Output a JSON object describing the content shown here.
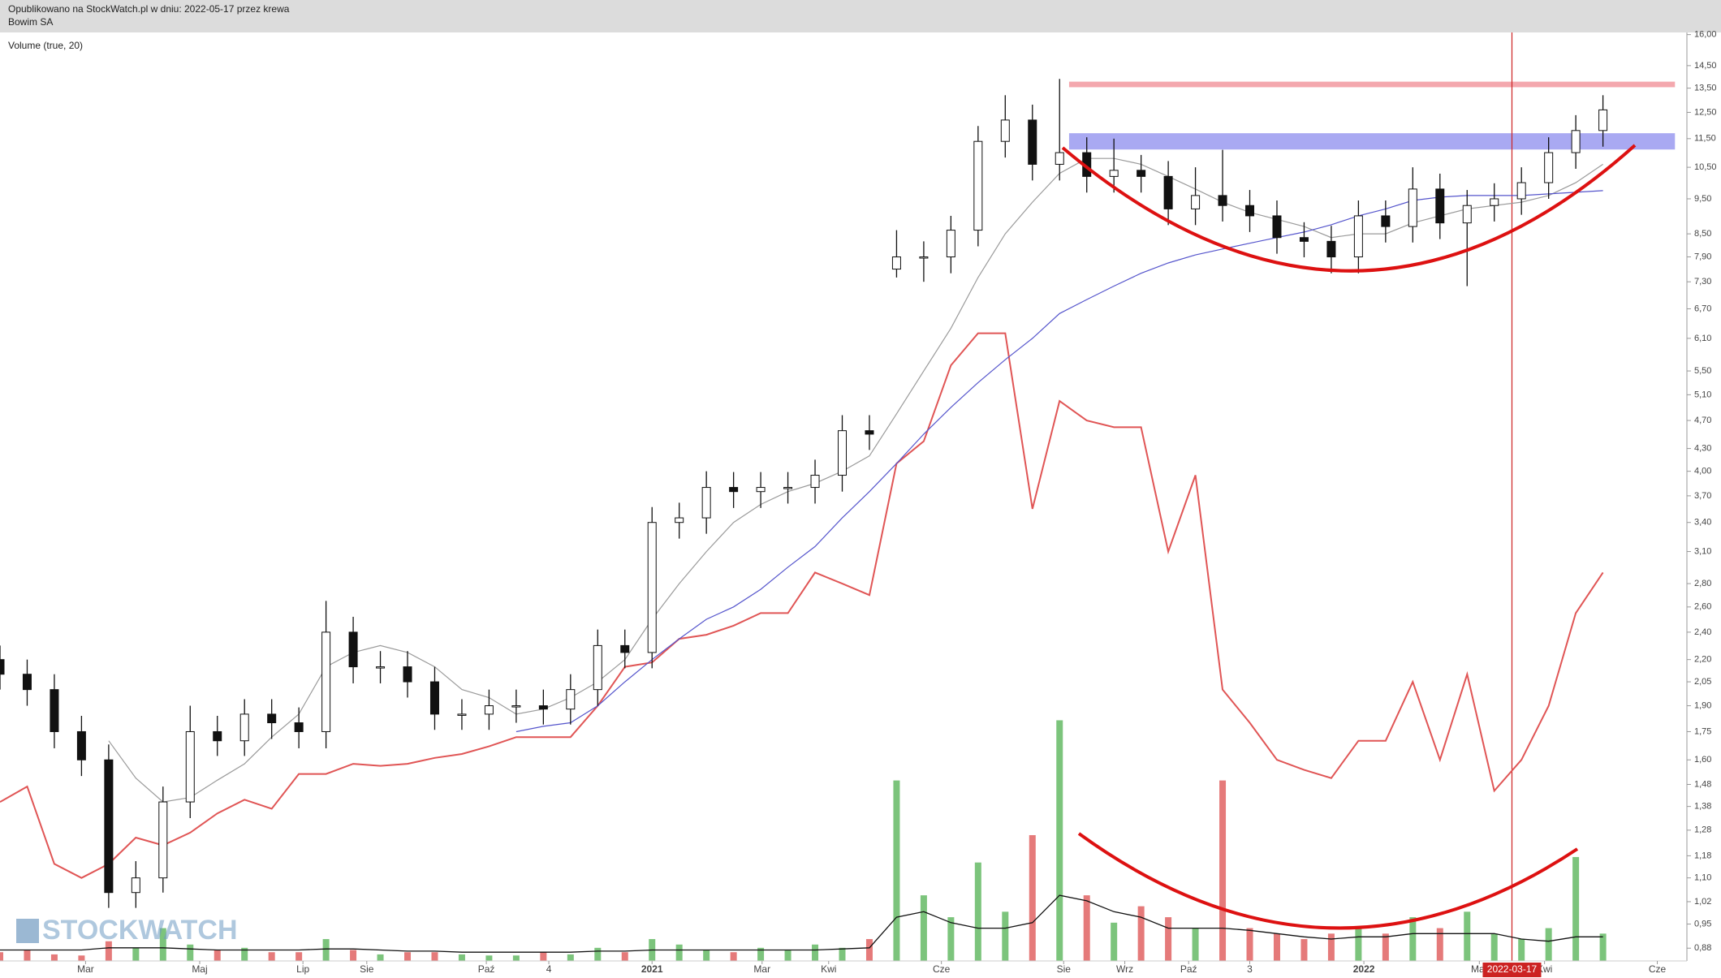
{
  "header": "Opublikowano na StockWatch.pl w dniu: 2022-05-17 przez krewa",
  "watermark": "STOCKWATCH",
  "chart_data": [
    {
      "type": "candlestick",
      "title": "Bowim SA",
      "x": [
        0,
        2,
        4,
        6,
        8,
        10,
        12,
        14,
        16,
        18,
        20,
        22,
        24,
        26,
        28,
        30,
        32,
        34,
        36,
        38,
        40,
        42,
        44,
        46,
        48,
        50,
        52,
        54,
        56,
        58,
        60,
        62,
        64,
        66,
        68,
        70,
        72,
        74,
        76,
        78,
        80,
        82,
        84,
        86,
        88,
        90,
        92,
        94,
        96,
        98,
        100,
        102,
        104,
        106,
        108,
        110,
        112,
        114,
        116,
        118
      ],
      "open": [
        2.2,
        2.1,
        2.0,
        1.75,
        1.6,
        1.05,
        1.1,
        1.4,
        1.75,
        1.7,
        1.85,
        1.8,
        1.75,
        2.4,
        2.15,
        2.15,
        2.05,
        1.85,
        1.85,
        1.9,
        1.9,
        1.88,
        2.0,
        2.3,
        2.25,
        3.4,
        3.45,
        3.8,
        3.75,
        3.8,
        3.8,
        3.95,
        4.55,
        7.6,
        7.9,
        7.9,
        8.6,
        11.4,
        12.2,
        10.6,
        11.0,
        10.2,
        10.4,
        10.2,
        9.2,
        9.6,
        9.3,
        9.0,
        8.4,
        8.3,
        7.9,
        9.0,
        8.7,
        9.8,
        8.8,
        9.3,
        9.5,
        10.0,
        11.0,
        11.8
      ],
      "high": [
        2.3,
        2.2,
        2.1,
        1.84,
        1.68,
        1.16,
        1.47,
        1.9,
        1.84,
        1.94,
        1.94,
        1.89,
        2.65,
        2.52,
        2.26,
        2.26,
        2.15,
        1.94,
        2.0,
        2.0,
        2.0,
        2.1,
        2.42,
        2.42,
        3.57,
        3.62,
        4.0,
        3.99,
        3.99,
        3.99,
        4.15,
        4.78,
        4.78,
        8.6,
        8.3,
        9.0,
        11.97,
        13.2,
        12.81,
        13.9,
        11.55,
        11.5,
        10.92,
        10.71,
        10.5,
        11.1,
        9.77,
        9.45,
        8.82,
        8.72,
        9.45,
        9.45,
        10.5,
        10.29,
        9.77,
        9.98,
        10.5,
        11.55,
        12.39,
        13.2
      ],
      "low": [
        2.0,
        1.9,
        1.66,
        1.52,
        1.0,
        1.0,
        1.05,
        1.33,
        1.62,
        1.62,
        1.71,
        1.66,
        1.66,
        2.04,
        2.04,
        1.95,
        1.76,
        1.76,
        1.76,
        1.8,
        1.79,
        1.79,
        1.9,
        2.14,
        2.14,
        3.23,
        3.28,
        3.56,
        3.56,
        3.61,
        3.61,
        3.75,
        4.28,
        7.4,
        7.3,
        7.5,
        8.17,
        10.83,
        10.07,
        10.07,
        9.69,
        9.69,
        9.69,
        8.74,
        8.74,
        8.84,
        8.55,
        7.98,
        7.89,
        7.5,
        7.5,
        8.27,
        8.27,
        8.36,
        7.2,
        8.84,
        9.03,
        9.5,
        10.45,
        11.21
      ],
      "close": [
        2.1,
        2.0,
        1.75,
        1.6,
        1.05,
        1.1,
        1.4,
        1.75,
        1.7,
        1.85,
        1.8,
        1.75,
        2.4,
        2.15,
        2.15,
        2.05,
        1.85,
        1.85,
        1.9,
        1.9,
        1.88,
        2.0,
        2.3,
        2.25,
        3.4,
        3.45,
        3.8,
        3.75,
        3.8,
        3.8,
        3.95,
        4.55,
        4.5,
        7.9,
        7.9,
        8.6,
        11.4,
        12.2,
        10.6,
        11.0,
        10.2,
        10.4,
        10.2,
        9.2,
        9.6,
        9.3,
        9.0,
        8.4,
        8.3,
        7.9,
        9.0,
        8.7,
        9.8,
        8.8,
        9.3,
        9.5,
        10.0,
        11.0,
        11.8,
        12.6
      ],
      "up_color": "#ffffff",
      "down_color": "#111111",
      "lines": [
        {
          "color": "#e05555",
          "values": [
            1.4,
            1.47,
            1.15,
            1.1,
            1.15,
            1.25,
            1.22,
            1.27,
            1.35,
            1.41,
            1.37,
            1.53,
            1.53,
            1.58,
            1.57,
            1.58,
            1.61,
            1.63,
            1.67,
            1.72,
            1.72,
            1.72,
            1.9,
            2.15,
            2.18,
            2.35,
            2.38,
            2.45,
            2.55,
            2.55,
            2.9,
            2.8,
            2.7,
            4.1,
            4.4,
            5.6,
            6.2,
            6.2,
            3.55,
            5.0,
            4.7,
            4.6,
            4.6,
            3.1,
            3.95,
            2.0,
            1.8,
            1.6,
            1.55,
            1.51,
            1.7,
            1.7,
            2.05,
            1.6,
            2.1,
            1.45,
            1.6,
            1.9,
            2.55,
            2.9
          ]
        },
        {
          "color": "#9a9a9a",
          "values": [
            null,
            null,
            null,
            null,
            1.7,
            1.51,
            1.4,
            1.42,
            1.5,
            1.58,
            1.72,
            1.85,
            2.15,
            2.25,
            2.3,
            2.25,
            2.15,
            2.0,
            1.95,
            1.85,
            1.88,
            1.95,
            2.05,
            2.2,
            2.5,
            2.8,
            3.1,
            3.4,
            3.6,
            3.75,
            3.85,
            4.0,
            4.2,
            4.8,
            5.5,
            6.3,
            7.4,
            8.5,
            9.4,
            10.3,
            10.8,
            10.8,
            10.6,
            10.2,
            9.8,
            9.4,
            9.1,
            8.9,
            8.7,
            8.4,
            8.5,
            8.5,
            8.8,
            9.0,
            9.2,
            9.3,
            9.4,
            9.6,
            10.0,
            10.6
          ]
        },
        {
          "color": "#5555cc",
          "values": [
            null,
            null,
            null,
            null,
            null,
            null,
            null,
            null,
            null,
            null,
            null,
            null,
            null,
            null,
            null,
            null,
            null,
            null,
            null,
            1.75,
            1.78,
            1.8,
            1.9,
            2.05,
            2.2,
            2.35,
            2.5,
            2.6,
            2.75,
            2.95,
            3.15,
            3.45,
            3.75,
            4.1,
            4.5,
            4.9,
            5.3,
            5.7,
            6.1,
            6.6,
            6.9,
            7.2,
            7.5,
            7.75,
            7.95,
            8.1,
            8.25,
            8.4,
            8.55,
            8.75,
            9.0,
            9.2,
            9.45,
            9.55,
            9.6,
            9.6,
            9.6,
            9.65,
            9.7,
            9.75
          ]
        }
      ],
      "bands": [
        {
          "from": 13.54,
          "to": 13.78,
          "x_from": 78.7,
          "x_to": 123.3,
          "color": "#f4a8ae"
        },
        {
          "from": 11.11,
          "to": 11.7,
          "x_from": 78.7,
          "x_to": 123.3,
          "color": "#a9a9f2"
        }
      ],
      "marker": {
        "x": 111.3,
        "label": "2022-03-17",
        "color": "#cc2222"
      },
      "log_scale": true,
      "xlim": [
        0,
        124
      ],
      "xticks": [
        {
          "value": 6.3,
          "label": "Mar"
        },
        {
          "value": 14.7,
          "label": "Maj"
        },
        {
          "value": 22.3,
          "label": "Lip"
        },
        {
          "value": 27.0,
          "label": "Sie"
        },
        {
          "value": 35.8,
          "label": "Paź"
        },
        {
          "value": 40.4,
          "label": "4"
        },
        {
          "value": 48.0,
          "label": "2021",
          "bold": true
        },
        {
          "value": 56.1,
          "label": "Mar"
        },
        {
          "value": 61.0,
          "label": "Kwi"
        },
        {
          "value": 69.3,
          "label": "Cze"
        },
        {
          "value": 78.3,
          "label": "Sie"
        },
        {
          "value": 82.8,
          "label": "Wrz"
        },
        {
          "value": 87.5,
          "label": "Paź"
        },
        {
          "value": 92.0,
          "label": "3"
        },
        {
          "value": 100.4,
          "label": "2022",
          "bold": true
        },
        {
          "value": 108.9,
          "label": "Mar"
        },
        {
          "value": 113.7,
          "label": "Kwi"
        },
        {
          "value": 122.0,
          "label": "Cze"
        }
      ],
      "ylim": [
        0.845,
        16.11
      ],
      "yticks": [
        {
          "value": 16,
          "label": "16,00"
        },
        {
          "value": 14.5,
          "label": "14,50"
        },
        {
          "value": 13.5,
          "label": "13,50"
        },
        {
          "value": 12.5,
          "label": "12,50"
        },
        {
          "value": 11.5,
          "label": "11,50"
        },
        {
          "value": 10.5,
          "label": "10,50"
        },
        {
          "value": 9.5,
          "label": "9,50"
        },
        {
          "value": 8.5,
          "label": "8,50"
        },
        {
          "value": 7.9,
          "label": "7,90"
        },
        {
          "value": 7.3,
          "label": "7,30"
        },
        {
          "value": 6.7,
          "label": "6,70"
        },
        {
          "value": 6.1,
          "label": "6,10"
        },
        {
          "value": 5.5,
          "label": "5,50"
        },
        {
          "value": 5.1,
          "label": "5,10"
        },
        {
          "value": 4.7,
          "label": "4,70"
        },
        {
          "value": 4.3,
          "label": "4,30"
        },
        {
          "value": 4.0,
          "label": "4,00"
        },
        {
          "value": 3.7,
          "label": "3,70"
        },
        {
          "value": 3.4,
          "label": "3,40"
        },
        {
          "value": 3.1,
          "label": "3,10"
        },
        {
          "value": 2.8,
          "label": "2,80"
        },
        {
          "value": 2.6,
          "label": "2,60"
        },
        {
          "value": 2.4,
          "label": "2,40"
        },
        {
          "value": 2.2,
          "label": "2,20"
        },
        {
          "value": 2.05,
          "label": "2,05"
        },
        {
          "value": 1.9,
          "label": "1,90"
        },
        {
          "value": 1.75,
          "label": "1,75"
        },
        {
          "value": 1.6,
          "label": "1,60"
        },
        {
          "value": 1.48,
          "label": "1,48"
        },
        {
          "value": 1.38,
          "label": "1,38"
        },
        {
          "value": 1.28,
          "label": "1,28"
        },
        {
          "value": 1.18,
          "label": "1,18"
        },
        {
          "value": 1.1,
          "label": "1,10"
        },
        {
          "value": 1.02,
          "label": "1,02"
        },
        {
          "value": 0.95,
          "label": "0,95"
        },
        {
          "value": 0.88,
          "label": "0,88"
        }
      ]
    },
    {
      "type": "bar",
      "title": "Volume (true, 20)",
      "x": [
        0,
        2,
        4,
        6,
        8,
        10,
        12,
        14,
        16,
        18,
        20,
        22,
        24,
        26,
        28,
        30,
        32,
        34,
        36,
        38,
        40,
        42,
        44,
        46,
        48,
        50,
        52,
        54,
        56,
        58,
        60,
        62,
        64,
        66,
        68,
        70,
        72,
        74,
        76,
        78,
        80,
        82,
        84,
        86,
        88,
        90,
        92,
        94,
        96,
        98,
        100,
        102,
        104,
        106,
        108,
        110,
        112,
        114,
        116,
        118
      ],
      "values": [
        8,
        10,
        6,
        5,
        18,
        12,
        30,
        15,
        10,
        12,
        8,
        8,
        20,
        10,
        6,
        8,
        8,
        6,
        5,
        5,
        8,
        6,
        12,
        8,
        20,
        15,
        10,
        8,
        12,
        10,
        15,
        12,
        20,
        165,
        60,
        40,
        90,
        45,
        115,
        220,
        60,
        35,
        50,
        40,
        30,
        165,
        30,
        25,
        20,
        25,
        30,
        25,
        40,
        30,
        45,
        25,
        20,
        30,
        95,
        25
      ],
      "up_color": "#7cc47c",
      "down_color": "#e57a7a",
      "line": {
        "color": "#111111",
        "values": [
          10,
          10,
          10,
          10,
          12,
          12,
          12,
          11,
          10,
          10,
          10,
          10,
          11,
          11,
          10,
          9,
          9,
          8,
          8,
          8,
          8,
          8,
          9,
          9,
          10,
          10,
          10,
          10,
          10,
          10,
          10,
          11,
          12,
          40,
          45,
          35,
          30,
          30,
          35,
          60,
          55,
          45,
          40,
          30,
          30,
          30,
          28,
          25,
          22,
          20,
          22,
          22,
          25,
          25,
          25,
          25,
          20,
          18,
          22,
          22
        ]
      },
      "xlim": [
        0,
        124
      ],
      "ylim": [
        0,
        250
      ]
    }
  ]
}
